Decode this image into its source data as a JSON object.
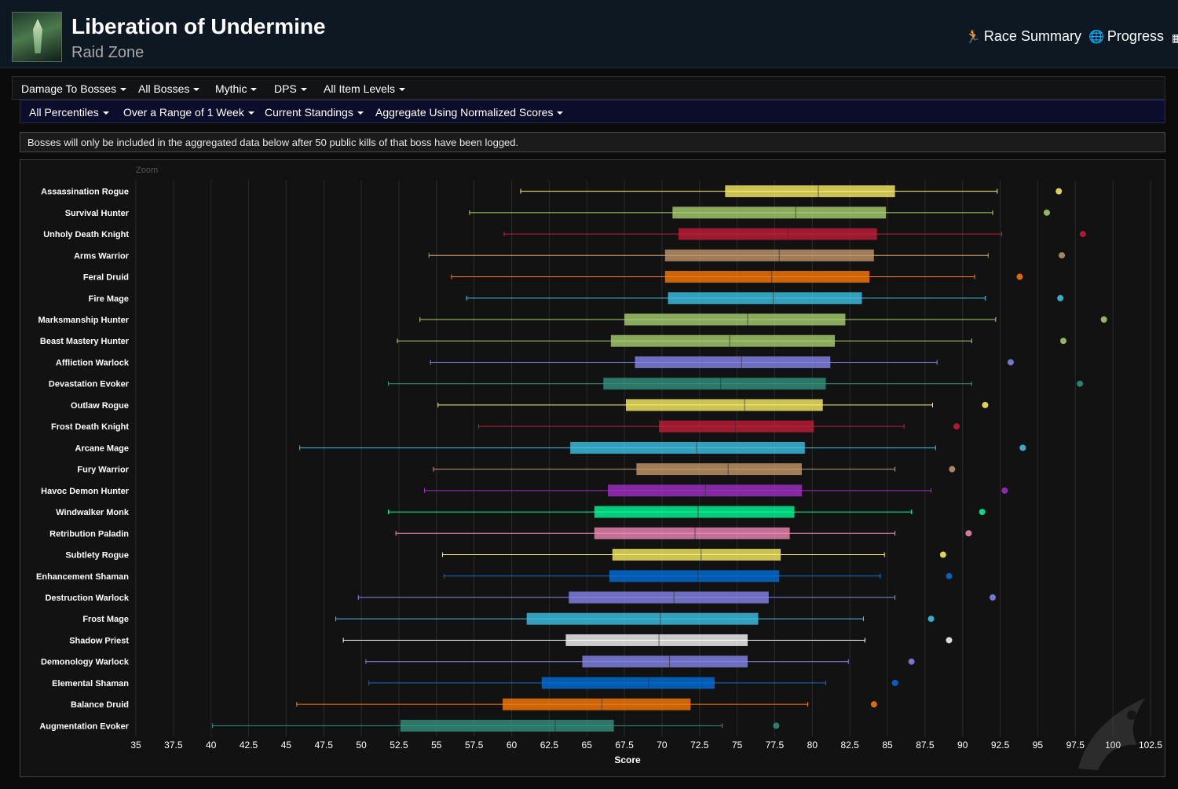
{
  "header": {
    "title": "Liberation of Undermine",
    "subtitle": "Raid Zone",
    "nav": [
      {
        "label": "Race Summary",
        "icon": "running-person-icon"
      },
      {
        "label": "Progress",
        "icon": "globe-icon"
      }
    ]
  },
  "filters": {
    "row1": [
      "Damage To Bosses",
      "All Bosses",
      "Mythic",
      "DPS",
      "All Item Levels"
    ],
    "row2": [
      "All Percentiles",
      "Over a Range of 1 Week",
      "Current Standings",
      "Aggregate Using Normalized Scores"
    ]
  },
  "notice": "Bosses will only be included in the aggregated data below after 50 public kills of that boss have been logged.",
  "chart_data": {
    "type": "boxplot",
    "zoom_label": "Zoom",
    "xlabel": "Score",
    "xlim": [
      35,
      102.5
    ],
    "xticks": [
      "35",
      "37.5",
      "40",
      "42.5",
      "45",
      "47.5",
      "50",
      "52.5",
      "55",
      "57.5",
      "60",
      "62.5",
      "65",
      "67.5",
      "70",
      "72.5",
      "75",
      "77.5",
      "80",
      "82.5",
      "85",
      "87.5",
      "90",
      "92.5",
      "95",
      "97.5",
      "100",
      "102.5"
    ],
    "grid": true,
    "series": [
      {
        "name": "Assassination Rogue",
        "color": "#FFF468",
        "min": 60.6,
        "q1": 74.2,
        "median": 80.4,
        "q3": 85.5,
        "max": 92.3,
        "max_point": 96.4
      },
      {
        "name": "Survival Hunter",
        "color": "#AAD372",
        "min": 57.2,
        "q1": 70.7,
        "median": 78.9,
        "q3": 84.9,
        "max": 92.0,
        "max_point": 95.6
      },
      {
        "name": "Unholy Death Knight",
        "color": "#C41E3A",
        "min": 59.5,
        "q1": 71.1,
        "median": 78.4,
        "q3": 84.3,
        "max": 92.6,
        "max_point": 98.0
      },
      {
        "name": "Arms Warrior",
        "color": "#C69B6D",
        "min": 54.5,
        "q1": 70.2,
        "median": 77.8,
        "q3": 84.1,
        "max": 91.7,
        "max_point": 96.6
      },
      {
        "name": "Feral Druid",
        "color": "#FF7C0A",
        "min": 56.0,
        "q1": 70.2,
        "median": 77.3,
        "q3": 83.8,
        "max": 90.8,
        "max_point": 93.8
      },
      {
        "name": "Fire Mage",
        "color": "#3FC7EB",
        "min": 57.0,
        "q1": 70.4,
        "median": 77.4,
        "q3": 83.3,
        "max": 91.5,
        "max_point": 96.5
      },
      {
        "name": "Marksmanship Hunter",
        "color": "#AAD372",
        "min": 53.9,
        "q1": 67.5,
        "median": 75.7,
        "q3": 82.2,
        "max": 92.2,
        "max_point": 99.4
      },
      {
        "name": "Beast Mastery Hunter",
        "color": "#AAD372",
        "min": 52.4,
        "q1": 66.6,
        "median": 74.5,
        "q3": 81.5,
        "max": 90.6,
        "max_point": 96.7
      },
      {
        "name": "Affliction Warlock",
        "color": "#8788EE",
        "min": 54.6,
        "q1": 68.2,
        "median": 75.3,
        "q3": 81.2,
        "max": 88.3,
        "max_point": 93.2
      },
      {
        "name": "Devastation Evoker",
        "color": "#33937F",
        "min": 51.8,
        "q1": 66.1,
        "median": 73.9,
        "q3": 80.9,
        "max": 90.6,
        "max_point": 97.8
      },
      {
        "name": "Outlaw Rogue",
        "color": "#FFF468",
        "min": 55.1,
        "q1": 67.6,
        "median": 75.5,
        "q3": 80.7,
        "max": 88.0,
        "max_point": 91.5
      },
      {
        "name": "Frost Death Knight",
        "color": "#C41E3A",
        "min": 57.8,
        "q1": 69.8,
        "median": 74.9,
        "q3": 80.1,
        "max": 86.1,
        "max_point": 89.6
      },
      {
        "name": "Arcane Mage",
        "color": "#3FC7EB",
        "min": 45.9,
        "q1": 63.9,
        "median": 72.3,
        "q3": 79.5,
        "max": 88.2,
        "max_point": 94.0
      },
      {
        "name": "Fury Warrior",
        "color": "#C69B6D",
        "min": 54.8,
        "q1": 68.3,
        "median": 74.4,
        "q3": 79.3,
        "max": 85.5,
        "max_point": 89.3
      },
      {
        "name": "Havoc Demon Hunter",
        "color": "#A330C9",
        "min": 54.2,
        "q1": 66.4,
        "median": 72.9,
        "q3": 79.3,
        "max": 87.9,
        "max_point": 92.8
      },
      {
        "name": "Windwalker Monk",
        "color": "#00FF98",
        "min": 51.8,
        "q1": 65.5,
        "median": 72.4,
        "q3": 78.8,
        "max": 86.6,
        "max_point": 91.3
      },
      {
        "name": "Retribution Paladin",
        "color": "#F48CBA",
        "min": 52.3,
        "q1": 65.5,
        "median": 72.2,
        "q3": 78.5,
        "max": 85.5,
        "max_point": 90.4
      },
      {
        "name": "Subtlety Rogue",
        "color": "#FFF468",
        "min": 55.4,
        "q1": 66.7,
        "median": 72.6,
        "q3": 77.9,
        "max": 84.8,
        "max_point": 88.7
      },
      {
        "name": "Enhancement Shaman",
        "color": "#0070DD",
        "min": 55.5,
        "q1": 66.5,
        "median": 72.4,
        "q3": 77.8,
        "max": 84.5,
        "max_point": 89.1
      },
      {
        "name": "Destruction Warlock",
        "color": "#8788EE",
        "min": 49.8,
        "q1": 63.8,
        "median": 70.8,
        "q3": 77.1,
        "max": 85.5,
        "max_point": 92.0
      },
      {
        "name": "Frost Mage",
        "color": "#3FC7EB",
        "min": 48.3,
        "q1": 61.0,
        "median": 69.9,
        "q3": 76.4,
        "max": 83.4,
        "max_point": 87.9
      },
      {
        "name": "Shadow Priest",
        "color": "#FFFFFF",
        "min": 48.8,
        "q1": 63.6,
        "median": 69.8,
        "q3": 75.7,
        "max": 83.5,
        "max_point": 89.1
      },
      {
        "name": "Demonology Warlock",
        "color": "#8788EE",
        "min": 50.3,
        "q1": 64.7,
        "median": 70.5,
        "q3": 75.7,
        "max": 82.4,
        "max_point": 86.6
      },
      {
        "name": "Elemental Shaman",
        "color": "#0070DD",
        "min": 50.5,
        "q1": 62.0,
        "median": 69.1,
        "q3": 73.5,
        "max": 80.9,
        "max_point": 85.5
      },
      {
        "name": "Balance Druid",
        "color": "#FF7C0A",
        "min": 45.7,
        "q1": 59.4,
        "median": 66.0,
        "q3": 71.9,
        "max": 79.7,
        "max_point": 84.1
      },
      {
        "name": "Augmentation Evoker",
        "color": "#33937F",
        "min": 40.1,
        "q1": 52.6,
        "median": 62.9,
        "q3": 66.8,
        "max": 74.0,
        "max_point": 77.6
      }
    ]
  }
}
